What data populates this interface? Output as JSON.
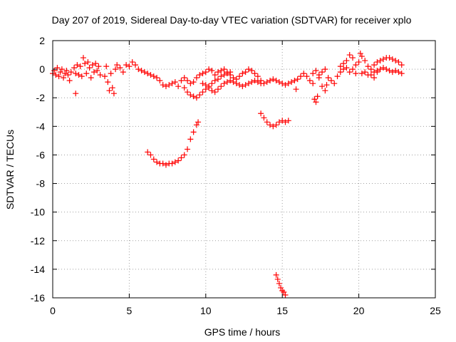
{
  "chart_data": {
    "type": "scatter",
    "title": "Day 207 of 2019, Sidereal Day-to-day VTEC variation (SDTVAR) for receiver xplo",
    "xlabel": "GPS time / hours",
    "ylabel": "SDTVAR / TECUs",
    "xlim": [
      0,
      25
    ],
    "ylim": [
      -16,
      2
    ],
    "xticks": [
      0,
      5,
      10,
      15,
      20,
      25
    ],
    "yticks": [
      2,
      0,
      -2,
      -4,
      -6,
      -8,
      -10,
      -12,
      -14,
      -16
    ],
    "xtick_labels": [
      "0",
      "5",
      "10",
      "15",
      "20",
      "25"
    ],
    "ytick_labels": [
      "2",
      "0",
      "-2",
      "-4",
      "-6",
      "-8",
      "-10",
      "-12",
      "-14",
      "-16"
    ],
    "grid": true,
    "marker": "+",
    "series_color": "#ff0000",
    "series": [
      {
        "name": "SDTVAR",
        "points": [
          [
            0.0,
            -0.3
          ],
          [
            0.1,
            -0.1
          ],
          [
            0.2,
            -0.4
          ],
          [
            0.3,
            0.1
          ],
          [
            0.4,
            -0.5
          ],
          [
            0.5,
            -0.2
          ],
          [
            0.6,
            0.0
          ],
          [
            0.7,
            -0.6
          ],
          [
            0.8,
            -0.3
          ],
          [
            0.9,
            -0.1
          ],
          [
            1.0,
            -0.4
          ],
          [
            1.1,
            -0.8
          ],
          [
            1.2,
            -0.2
          ],
          [
            1.4,
            0.1
          ],
          [
            1.5,
            -0.3
          ],
          [
            1.5,
            -1.7
          ],
          [
            1.6,
            0.3
          ],
          [
            1.7,
            -0.4
          ],
          [
            1.8,
            0.2
          ],
          [
            1.9,
            -0.5
          ],
          [
            2.0,
            0.8
          ],
          [
            2.1,
            0.4
          ],
          [
            2.2,
            -0.3
          ],
          [
            2.3,
            0.5
          ],
          [
            2.4,
            0.1
          ],
          [
            2.5,
            -0.6
          ],
          [
            2.6,
            0.3
          ],
          [
            2.7,
            -0.2
          ],
          [
            2.8,
            0.4
          ],
          [
            2.9,
            -0.1
          ],
          [
            3.0,
            0.2
          ],
          [
            3.1,
            -0.4
          ],
          [
            3.4,
            -0.5
          ],
          [
            3.5,
            0.2
          ],
          [
            3.6,
            -0.9
          ],
          [
            3.7,
            -1.5
          ],
          [
            3.8,
            -0.3
          ],
          [
            3.9,
            -1.3
          ],
          [
            4.0,
            -1.7
          ],
          [
            4.1,
            0.0
          ],
          [
            4.2,
            0.3
          ],
          [
            4.4,
            0.1
          ],
          [
            4.6,
            -0.2
          ],
          [
            4.8,
            0.3
          ],
          [
            5.0,
            0.2
          ],
          [
            5.2,
            0.5
          ],
          [
            5.4,
            0.3
          ],
          [
            5.6,
            0.0
          ],
          [
            5.8,
            -0.1
          ],
          [
            6.0,
            -0.2
          ],
          [
            6.2,
            -0.3
          ],
          [
            6.4,
            -0.4
          ],
          [
            6.6,
            -0.5
          ],
          [
            6.8,
            -0.6
          ],
          [
            7.0,
            -0.8
          ],
          [
            7.2,
            -1.1
          ],
          [
            7.4,
            -1.2
          ],
          [
            7.6,
            -1.1
          ],
          [
            7.8,
            -1.0
          ],
          [
            8.0,
            -0.9
          ],
          [
            8.2,
            -1.2
          ],
          [
            8.4,
            -0.8
          ],
          [
            8.6,
            -1.3
          ],
          [
            8.8,
            -1.6
          ],
          [
            9.0,
            -1.8
          ],
          [
            9.2,
            -1.9
          ],
          [
            9.4,
            -2.0
          ],
          [
            8.6,
            -0.6
          ],
          [
            8.8,
            -0.8
          ],
          [
            9.0,
            -1.0
          ],
          [
            9.2,
            -0.9
          ],
          [
            9.4,
            -0.6
          ],
          [
            9.6,
            -0.4
          ],
          [
            9.8,
            -0.3
          ],
          [
            10.0,
            -0.2
          ],
          [
            10.2,
            0.0
          ],
          [
            10.4,
            -0.1
          ],
          [
            9.6,
            -1.8
          ],
          [
            9.8,
            -1.6
          ],
          [
            10.0,
            -1.4
          ],
          [
            10.2,
            -1.2
          ],
          [
            10.4,
            -1.0
          ],
          [
            10.6,
            -0.8
          ],
          [
            10.8,
            -0.7
          ],
          [
            11.0,
            -0.5
          ],
          [
            11.2,
            -0.4
          ],
          [
            11.4,
            -0.3
          ],
          [
            11.6,
            -0.2
          ],
          [
            9.8,
            -1.0
          ],
          [
            10.0,
            -1.1
          ],
          [
            10.2,
            -1.3
          ],
          [
            10.4,
            -1.5
          ],
          [
            10.6,
            -1.6
          ],
          [
            10.8,
            -1.4
          ],
          [
            11.0,
            -1.2
          ],
          [
            11.2,
            -1.0
          ],
          [
            11.4,
            -0.9
          ],
          [
            11.6,
            -0.8
          ],
          [
            11.8,
            -0.9
          ],
          [
            12.0,
            -1.0
          ],
          [
            12.2,
            -1.1
          ],
          [
            12.4,
            -1.2
          ],
          [
            10.6,
            -0.4
          ],
          [
            10.8,
            -0.2
          ],
          [
            11.0,
            -0.1
          ],
          [
            11.2,
            0.0
          ],
          [
            11.4,
            -0.2
          ],
          [
            11.6,
            -0.4
          ],
          [
            11.8,
            -0.6
          ],
          [
            12.0,
            -0.7
          ],
          [
            12.2,
            -0.5
          ],
          [
            12.4,
            -0.3
          ],
          [
            12.6,
            -0.2
          ],
          [
            12.8,
            0.0
          ],
          [
            13.0,
            -0.1
          ],
          [
            13.2,
            -0.3
          ],
          [
            13.4,
            -0.5
          ],
          [
            13.6,
            -0.8
          ],
          [
            12.6,
            -1.1
          ],
          [
            12.8,
            -1.0
          ],
          [
            13.0,
            -0.9
          ],
          [
            13.2,
            -0.8
          ],
          [
            13.4,
            -0.9
          ],
          [
            13.6,
            -1.0
          ],
          [
            13.8,
            -1.0
          ],
          [
            14.0,
            -0.9
          ],
          [
            14.2,
            -0.8
          ],
          [
            14.4,
            -0.7
          ],
          [
            14.6,
            -0.8
          ],
          [
            14.8,
            -0.9
          ],
          [
            15.0,
            -1.0
          ],
          [
            15.2,
            -1.1
          ],
          [
            15.4,
            -1.0
          ],
          [
            15.6,
            -0.9
          ],
          [
            15.8,
            -0.8
          ],
          [
            15.9,
            -1.4
          ],
          [
            16.0,
            -0.7
          ],
          [
            16.2,
            -0.5
          ],
          [
            16.4,
            -0.3
          ],
          [
            16.6,
            -0.5
          ],
          [
            16.8,
            -0.8
          ],
          [
            17.0,
            -1.0
          ],
          [
            17.1,
            -2.1
          ],
          [
            17.2,
            -2.3
          ],
          [
            17.3,
            -1.9
          ],
          [
            17.4,
            -0.6
          ],
          [
            17.6,
            -1.2
          ],
          [
            17.8,
            -1.5
          ],
          [
            17.9,
            -1.1
          ],
          [
            17.0,
            -0.3
          ],
          [
            17.2,
            -0.1
          ],
          [
            17.4,
            -0.4
          ],
          [
            17.6,
            -0.2
          ],
          [
            17.8,
            0.0
          ],
          [
            18.0,
            -0.6
          ],
          [
            18.2,
            -0.8
          ],
          [
            18.4,
            -1.0
          ],
          [
            18.6,
            -0.5
          ],
          [
            18.8,
            -0.2
          ],
          [
            19.0,
            0.0
          ],
          [
            19.2,
            0.6
          ],
          [
            19.4,
            1.0
          ],
          [
            19.6,
            0.8
          ],
          [
            19.8,
            0.3
          ],
          [
            18.8,
            0.2
          ],
          [
            19.0,
            0.4
          ],
          [
            19.2,
            0.1
          ],
          [
            19.4,
            -0.2
          ],
          [
            19.6,
            0.0
          ],
          [
            19.8,
            -0.3
          ],
          [
            20.0,
            0.5
          ],
          [
            20.1,
            1.1
          ],
          [
            20.2,
            0.9
          ],
          [
            20.4,
            0.6
          ],
          [
            20.6,
            0.2
          ],
          [
            20.8,
            -0.4
          ],
          [
            21.0,
            -0.6
          ],
          [
            21.2,
            -0.2
          ],
          [
            20.2,
            -0.3
          ],
          [
            20.4,
            -0.2
          ],
          [
            20.6,
            -0.4
          ],
          [
            20.8,
            0.0
          ],
          [
            21.0,
            0.3
          ],
          [
            21.2,
            0.5
          ],
          [
            21.4,
            0.6
          ],
          [
            21.6,
            0.7
          ],
          [
            21.8,
            0.8
          ],
          [
            22.0,
            0.8
          ],
          [
            22.2,
            0.7
          ],
          [
            22.4,
            0.6
          ],
          [
            22.6,
            0.5
          ],
          [
            22.8,
            0.3
          ],
          [
            21.0,
            -0.2
          ],
          [
            21.2,
            -0.1
          ],
          [
            21.4,
            0.0
          ],
          [
            21.6,
            0.1
          ],
          [
            21.8,
            0.0
          ],
          [
            22.0,
            -0.1
          ],
          [
            22.2,
            -0.2
          ],
          [
            22.4,
            -0.1
          ],
          [
            22.6,
            -0.2
          ],
          [
            22.8,
            -0.3
          ],
          [
            6.2,
            -5.8
          ],
          [
            6.4,
            -6.0
          ],
          [
            6.6,
            -6.3
          ],
          [
            6.8,
            -6.5
          ],
          [
            7.0,
            -6.6
          ],
          [
            7.2,
            -6.6
          ],
          [
            7.4,
            -6.7
          ],
          [
            7.6,
            -6.6
          ],
          [
            7.8,
            -6.6
          ],
          [
            8.0,
            -6.5
          ],
          [
            8.2,
            -6.4
          ],
          [
            8.4,
            -6.2
          ],
          [
            8.6,
            -6.0
          ],
          [
            8.8,
            -5.6
          ],
          [
            9.0,
            -4.9
          ],
          [
            9.2,
            -4.4
          ],
          [
            9.4,
            -3.9
          ],
          [
            9.5,
            -3.7
          ],
          [
            13.6,
            -3.1
          ],
          [
            13.8,
            -3.4
          ],
          [
            14.0,
            -3.7
          ],
          [
            14.2,
            -3.9
          ],
          [
            14.4,
            -4.0
          ],
          [
            14.6,
            -3.9
          ],
          [
            14.8,
            -3.7
          ],
          [
            15.0,
            -3.6
          ],
          [
            15.2,
            -3.7
          ],
          [
            15.4,
            -3.6
          ],
          [
            14.6,
            -14.4
          ],
          [
            14.7,
            -14.7
          ],
          [
            14.8,
            -15.0
          ],
          [
            14.9,
            -15.3
          ],
          [
            15.0,
            -15.5
          ],
          [
            15.1,
            -15.6
          ],
          [
            15.2,
            -15.8
          ]
        ]
      }
    ]
  }
}
